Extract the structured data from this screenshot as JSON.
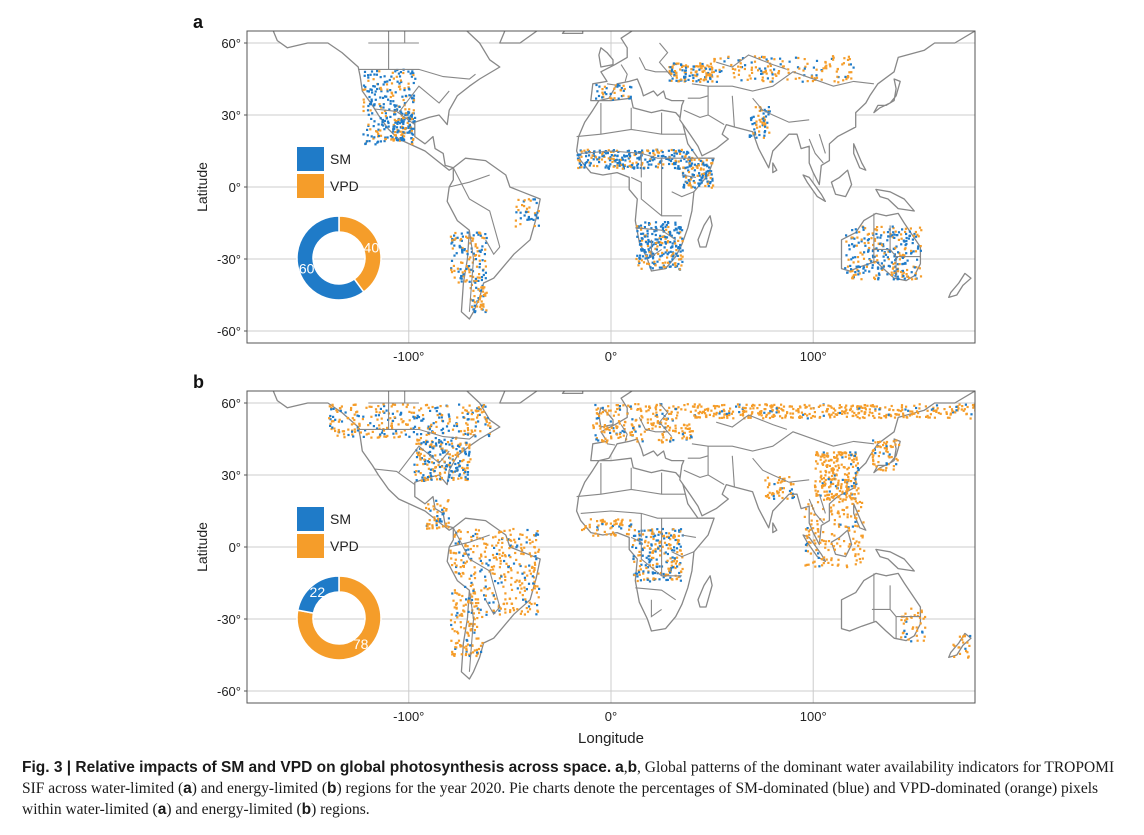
{
  "colors": {
    "sm": "#1f7bc8",
    "vpd": "#f59d2a",
    "land": "#ffffff",
    "border": "#888888",
    "grid": "#cccccc",
    "frame": "#555555"
  },
  "axes": {
    "lat_ticks": [
      "60°",
      "30°",
      "0°",
      "-30°",
      "-60°"
    ],
    "lon_ticks": [
      "-100°",
      "0°",
      "100°"
    ],
    "ylabel": "Latitude",
    "xlabel": "Longitude"
  },
  "chart_data": [
    {
      "type": "pie",
      "panel": "a",
      "labels": [
        "SM",
        "VPD"
      ],
      "values": [
        60,
        40
      ],
      "legend": [
        "SM",
        "VPD"
      ],
      "ylabel": "Latitude",
      "lat_range": [
        -60,
        60
      ],
      "lon_range": [
        -180,
        180
      ],
      "grid": true
    },
    {
      "type": "pie",
      "panel": "b",
      "labels": [
        "SM",
        "VPD"
      ],
      "values": [
        22,
        78
      ],
      "legend": [
        "SM",
        "VPD"
      ],
      "ylabel": "Latitude",
      "xlabel": "Longitude",
      "lat_range": [
        -60,
        60
      ],
      "lon_range": [
        -180,
        180
      ],
      "grid": true
    }
  ],
  "caption": {
    "label": "Fig. 3 | Relative impacts of SM and VPD on global photosynthesis across space.",
    "panels_ref": "a",
    "panels_ref2": "b",
    "text_1": "Global patterns of the dominant water availability indicators for TROPOMI SIF across water-limited (",
    "a": "a",
    "text_2": ") and energy-limited (",
    "b": "b",
    "text_3": ") regions for the year 2020. Pie charts denote the percentages of SM-dominated (blue) and VPD-dominated (orange) pixels within water-limited (",
    "text_4": ") and energy-limited (",
    "text_5": ") regions."
  }
}
